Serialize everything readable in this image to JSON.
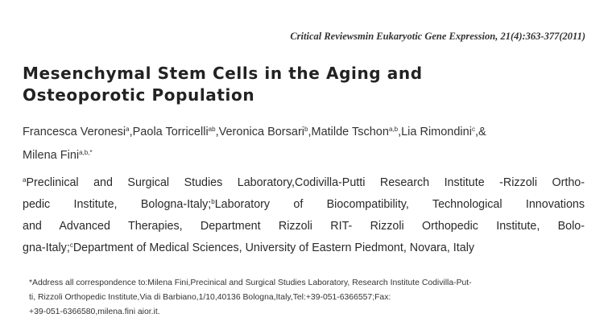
{
  "journal": "Critical Reviewsmin Eukaryotic Gene Expression, 21(4):363-377(2011)",
  "title_lines": [
    "Mesenchymal Stem Cells in the Aging and",
    "Osteoporotic Population"
  ],
  "authors": [
    {
      "name": "Francesca Veronesi",
      "sup": "a",
      "sep": ","
    },
    {
      "name": "Paola Torricelli",
      "sup": "ab",
      "sep": ","
    },
    {
      "name": "Veronica Borsari",
      "sup": "b",
      "sep": ","
    },
    {
      "name": "Matilde Tschon",
      "sup": "a,b",
      "sep": ","
    },
    {
      "name": "Lia Rimondini",
      "sup": "c",
      "sep": ",&"
    },
    {
      "name": "Milena Fini",
      "sup": "a,b,*",
      "sep": ""
    }
  ],
  "affiliations": {
    "l1_sup": "a",
    "l1": "Preclinical and Surgical Studies Laboratory,Codivilla-Putti Research Institute -Rizzoli Ortho-",
    "l2a": "pedic Institute, Bologna-Italy;",
    "l2_sup": "b",
    "l2b": "Laboratory of Biocompatibility, Technological Innovations",
    "l3": "and Advanced Therapies, Department Rizzoli RIT- Rizzoli Orthopedic Institute, Bolo-",
    "l4a": "gna-Italy;",
    "l4_sup": "c",
    "l4b": "Department of Medical Sciences, University of Eastern Piedmont, Novara, Italy"
  },
  "footnote_lines": [
    "*Address all correspondence to:Milena Fini,Precinical and Surgical Studies Laboratory, Research Institute Codivilla-Put-",
    "ti, Rizzoli Orthopedic Institute,Via di Barbiano,1/10,40136 Bologna,Italy,Tel:+39-051-6366557;Fax:",
    "+39-051-6366580,milena.fini aior.it."
  ]
}
